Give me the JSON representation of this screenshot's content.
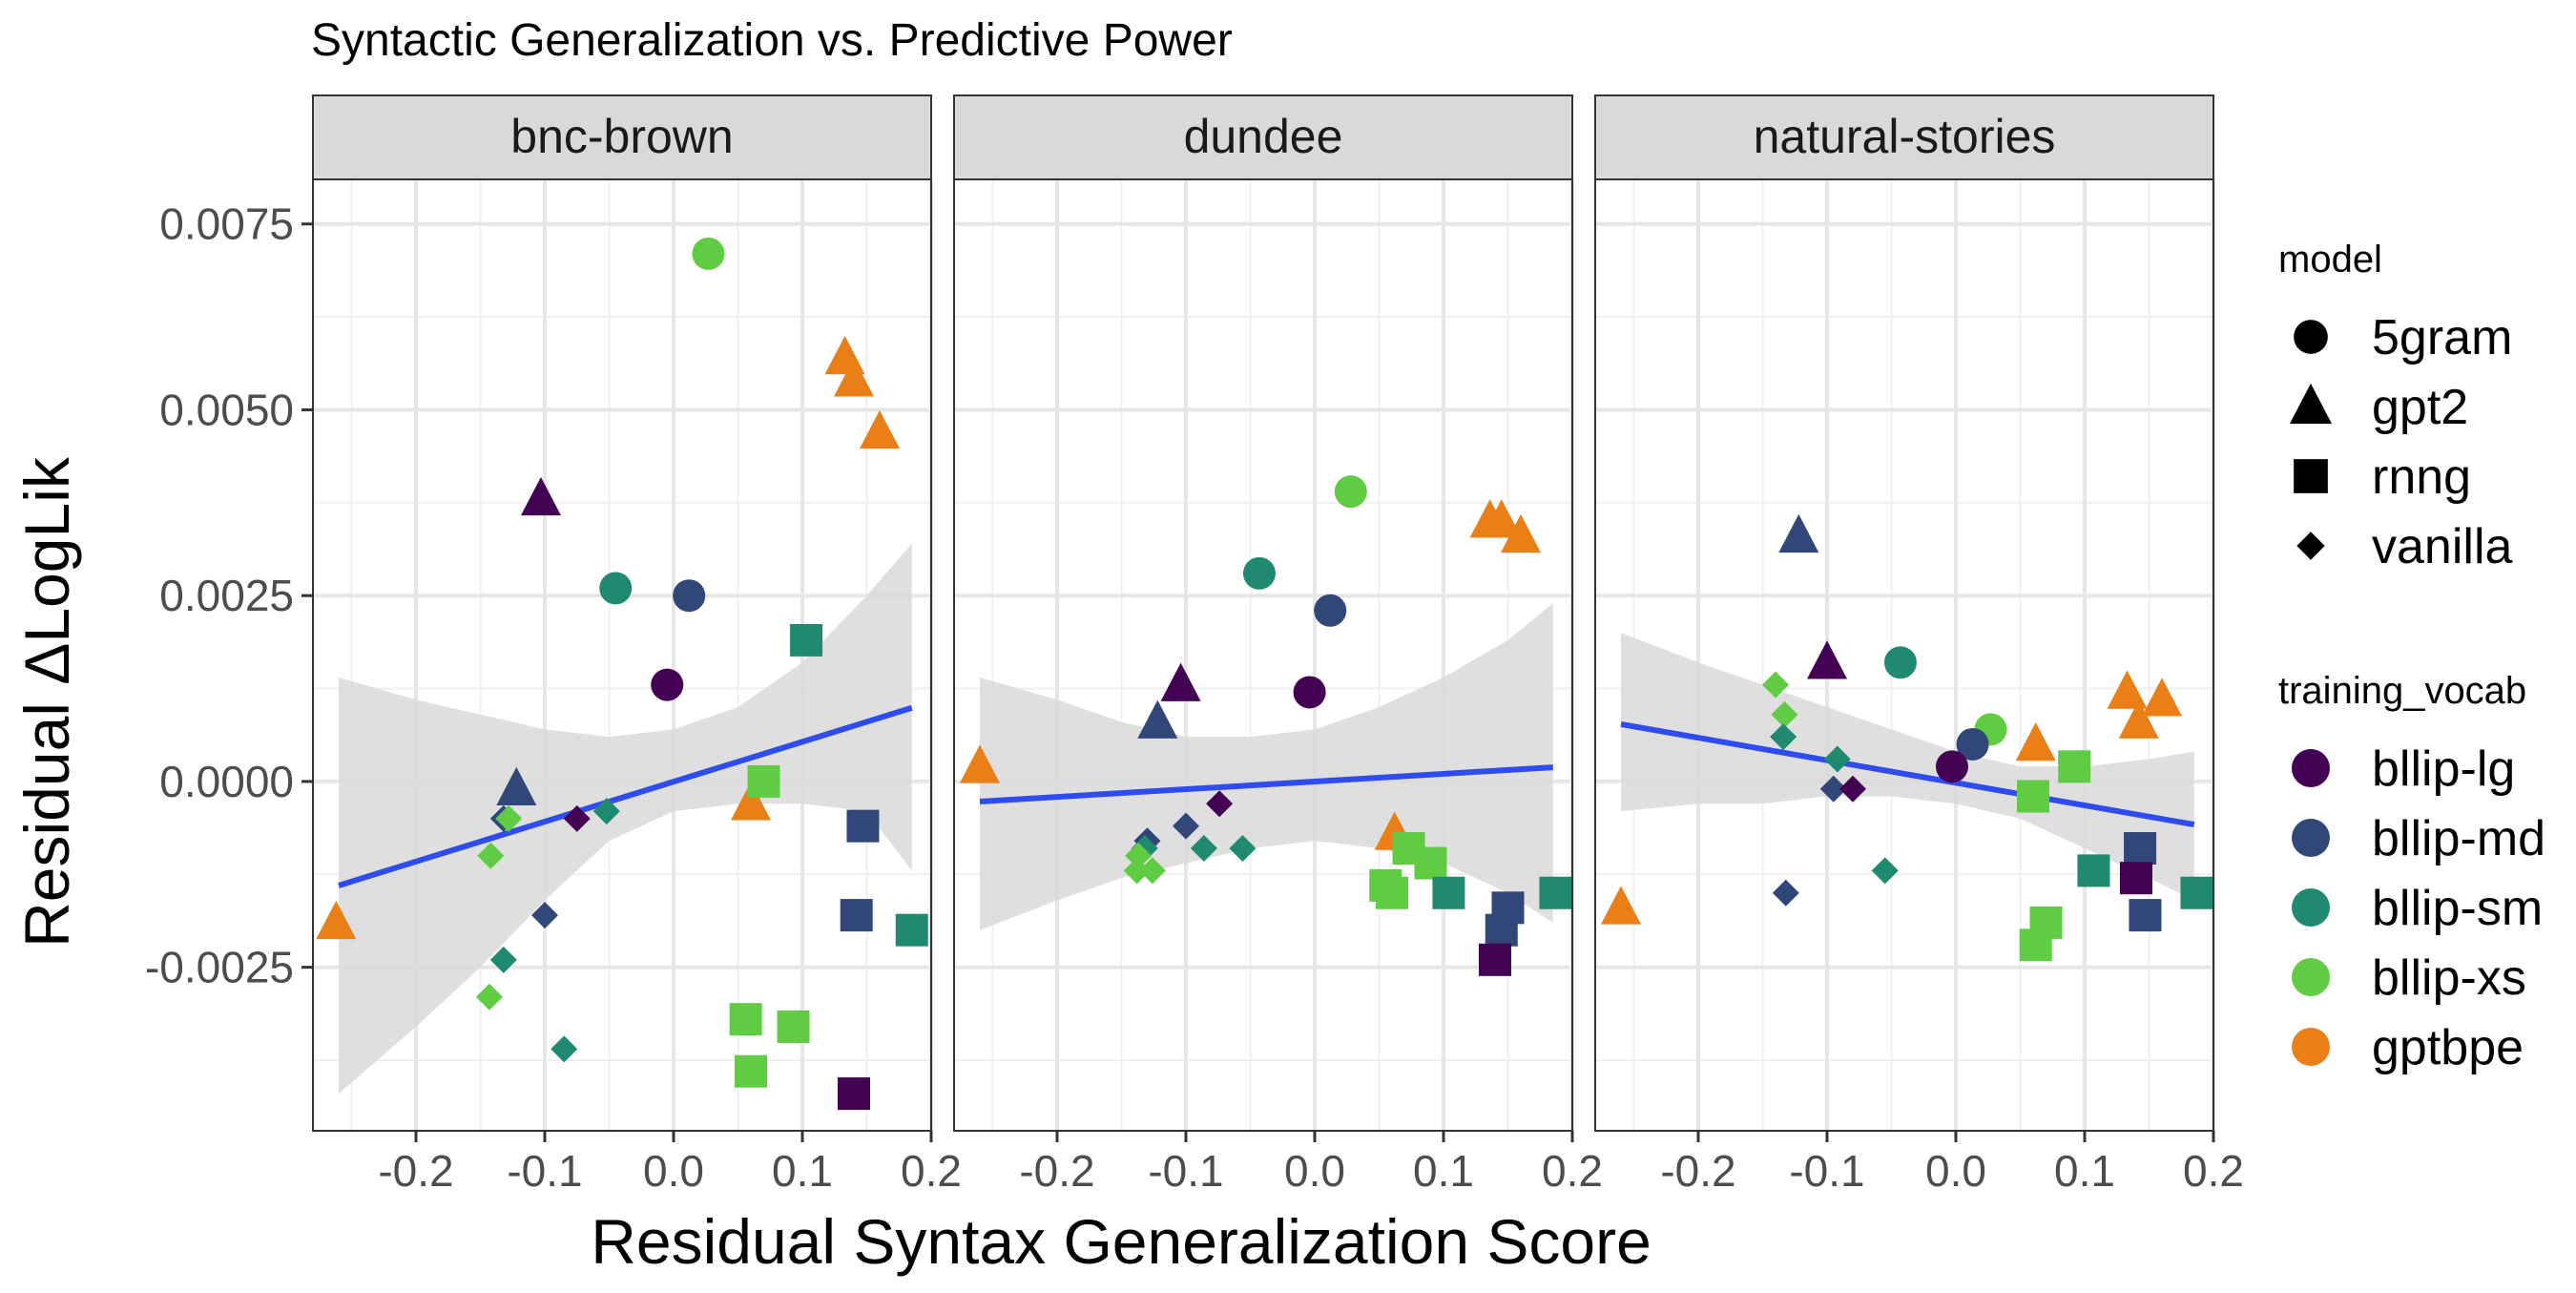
{
  "chart_data": {
    "type": "scatter",
    "title": "Syntactic Generalization vs. Predictive Power",
    "xlabel": "Residual Syntax Generalization Score",
    "ylabel": "Residual ΔLogLik",
    "xlim": [
      -0.28,
      0.2
    ],
    "ylim": [
      -0.0047,
      0.0081
    ],
    "x_ticks": [
      -0.2,
      -0.1,
      0.0,
      0.1,
      0.2
    ],
    "x_tick_labels": [
      "-0.2",
      "-0.1",
      "0.0",
      "0.1",
      "0.2"
    ],
    "y_ticks": [
      -0.0025,
      0.0,
      0.0025,
      0.005,
      0.0075
    ],
    "y_tick_labels": [
      "-0.0025",
      "0.0000",
      "0.0025",
      "0.0050",
      "0.0075"
    ],
    "grid": true,
    "legend": {
      "placement": "right",
      "model": {
        "title": "model",
        "entries": [
          {
            "label": "5gram",
            "shape": "circle"
          },
          {
            "label": "gpt2",
            "shape": "triangle"
          },
          {
            "label": "rnng",
            "shape": "square"
          },
          {
            "label": "vanilla",
            "shape": "diamond"
          }
        ]
      },
      "training_vocab": {
        "title": "training_vocab",
        "entries": [
          {
            "label": "bllip-lg",
            "color": "#440154"
          },
          {
            "label": "bllip-md",
            "color": "#31477a"
          },
          {
            "label": "bllip-sm",
            "color": "#1f8a70"
          },
          {
            "label": "bllip-xs",
            "color": "#5fcc44"
          },
          {
            "label": "gptbpe",
            "color": "#ea7f17"
          }
        ]
      }
    },
    "colors": {
      "bllip-lg": "#440154",
      "bllip-md": "#31477a",
      "bllip-sm": "#1f8a70",
      "bllip-xs": "#5fcc44",
      "gptbpe": "#ea7f17",
      "regression_line": "#2f4cf0",
      "confidence_band": "#d9d9d9",
      "strip_fill": "#d9d9d9"
    },
    "panels": [
      {
        "name": "bnc-brown",
        "regression": {
          "x": [
            -0.26,
            0.185
          ],
          "y": [
            -0.0014,
            0.00099
          ]
        },
        "band": {
          "x": [
            -0.26,
            -0.2,
            -0.15,
            -0.1,
            -0.05,
            0.0,
            0.05,
            0.1,
            0.15,
            0.185
          ],
          "upper": [
            0.0014,
            0.0011,
            0.0009,
            0.0007,
            0.0006,
            0.0007,
            0.001,
            0.0016,
            0.0025,
            0.0032
          ],
          "lower": [
            -0.0042,
            -0.0033,
            -0.0025,
            -0.0016,
            -0.0008,
            -0.0004,
            -0.0003,
            -0.0003,
            -0.0004,
            -0.0012
          ]
        },
        "points": [
          {
            "x": -0.262,
            "y": -0.0019,
            "model": "gpt2",
            "vocab": "gptbpe"
          },
          {
            "x": 0.06,
            "y": -0.0003,
            "model": "gpt2",
            "vocab": "gptbpe"
          },
          {
            "x": 0.133,
            "y": 0.0057,
            "model": "gpt2",
            "vocab": "gptbpe"
          },
          {
            "x": 0.14,
            "y": 0.0054,
            "model": "gpt2",
            "vocab": "gptbpe"
          },
          {
            "x": 0.16,
            "y": 0.0047,
            "model": "gpt2",
            "vocab": "gptbpe"
          },
          {
            "x": -0.103,
            "y": 0.0038,
            "model": "gpt2",
            "vocab": "bllip-lg"
          },
          {
            "x": -0.122,
            "y": -0.0001,
            "model": "gpt2",
            "vocab": "bllip-md"
          },
          {
            "x": 0.027,
            "y": 0.0071,
            "model": "5gram",
            "vocab": "bllip-xs"
          },
          {
            "x": -0.045,
            "y": 0.0026,
            "model": "5gram",
            "vocab": "bllip-sm"
          },
          {
            "x": 0.012,
            "y": 0.0025,
            "model": "5gram",
            "vocab": "bllip-md"
          },
          {
            "x": -0.005,
            "y": 0.0013,
            "model": "5gram",
            "vocab": "bllip-lg"
          },
          {
            "x": 0.103,
            "y": 0.0019,
            "model": "rnng",
            "vocab": "bllip-sm"
          },
          {
            "x": 0.07,
            "y": 0.0,
            "model": "rnng",
            "vocab": "bllip-xs"
          },
          {
            "x": 0.147,
            "y": -0.0006,
            "model": "rnng",
            "vocab": "bllip-md"
          },
          {
            "x": 0.142,
            "y": -0.0018,
            "model": "rnng",
            "vocab": "bllip-md"
          },
          {
            "x": 0.185,
            "y": -0.002,
            "model": "rnng",
            "vocab": "bllip-sm"
          },
          {
            "x": 0.056,
            "y": -0.0032,
            "model": "rnng",
            "vocab": "bllip-xs"
          },
          {
            "x": 0.093,
            "y": -0.0033,
            "model": "rnng",
            "vocab": "bllip-xs"
          },
          {
            "x": 0.06,
            "y": -0.0039,
            "model": "rnng",
            "vocab": "bllip-xs"
          },
          {
            "x": 0.14,
            "y": -0.0042,
            "model": "rnng",
            "vocab": "bllip-lg"
          },
          {
            "x": -0.132,
            "y": -0.0005,
            "model": "vanilla",
            "vocab": "bllip-md"
          },
          {
            "x": -0.128,
            "y": -0.0005,
            "model": "vanilla",
            "vocab": "bllip-xs"
          },
          {
            "x": -0.075,
            "y": -0.0005,
            "model": "vanilla",
            "vocab": "bllip-lg"
          },
          {
            "x": -0.052,
            "y": -0.0004,
            "model": "vanilla",
            "vocab": "bllip-sm"
          },
          {
            "x": -0.142,
            "y": -0.001,
            "model": "vanilla",
            "vocab": "bllip-xs"
          },
          {
            "x": -0.1,
            "y": -0.0018,
            "model": "vanilla",
            "vocab": "bllip-md"
          },
          {
            "x": -0.132,
            "y": -0.0024,
            "model": "vanilla",
            "vocab": "bllip-sm"
          },
          {
            "x": -0.143,
            "y": -0.0029,
            "model": "vanilla",
            "vocab": "bllip-xs"
          },
          {
            "x": -0.085,
            "y": -0.0036,
            "model": "vanilla",
            "vocab": "bllip-sm"
          }
        ]
      },
      {
        "name": "dundee",
        "regression": {
          "x": [
            -0.26,
            0.185
          ],
          "y": [
            -0.00027,
            0.00019
          ]
        },
        "band": {
          "x": [
            -0.26,
            -0.2,
            -0.15,
            -0.1,
            -0.05,
            0.0,
            0.05,
            0.1,
            0.15,
            0.185
          ],
          "upper": [
            0.0014,
            0.0011,
            0.0008,
            0.0006,
            0.0006,
            0.0007,
            0.001,
            0.0014,
            0.0019,
            0.0024
          ],
          "lower": [
            -0.002,
            -0.0016,
            -0.0013,
            -0.0011,
            -0.0009,
            -0.0008,
            -0.0009,
            -0.0011,
            -0.0015,
            -0.0019
          ]
        },
        "points": [
          {
            "x": -0.26,
            "y": 0.0002,
            "model": "gpt2",
            "vocab": "gptbpe"
          },
          {
            "x": 0.062,
            "y": -0.0007,
            "model": "gpt2",
            "vocab": "gptbpe"
          },
          {
            "x": 0.136,
            "y": 0.0035,
            "model": "gpt2",
            "vocab": "gptbpe"
          },
          {
            "x": 0.145,
            "y": 0.0035,
            "model": "gpt2",
            "vocab": "gptbpe"
          },
          {
            "x": 0.16,
            "y": 0.0033,
            "model": "gpt2",
            "vocab": "gptbpe"
          },
          {
            "x": -0.104,
            "y": 0.0013,
            "model": "gpt2",
            "vocab": "bllip-lg"
          },
          {
            "x": -0.122,
            "y": 0.0008,
            "model": "gpt2",
            "vocab": "bllip-md"
          },
          {
            "x": 0.028,
            "y": 0.0039,
            "model": "5gram",
            "vocab": "bllip-xs"
          },
          {
            "x": -0.043,
            "y": 0.0028,
            "model": "5gram",
            "vocab": "bllip-sm"
          },
          {
            "x": 0.012,
            "y": 0.0023,
            "model": "5gram",
            "vocab": "bllip-md"
          },
          {
            "x": -0.004,
            "y": 0.0012,
            "model": "5gram",
            "vocab": "bllip-lg"
          },
          {
            "x": 0.073,
            "y": -0.0009,
            "model": "rnng",
            "vocab": "bllip-xs"
          },
          {
            "x": 0.09,
            "y": -0.0011,
            "model": "rnng",
            "vocab": "bllip-xs"
          },
          {
            "x": 0.055,
            "y": -0.0014,
            "model": "rnng",
            "vocab": "bllip-xs"
          },
          {
            "x": 0.06,
            "y": -0.0015,
            "model": "rnng",
            "vocab": "bllip-xs"
          },
          {
            "x": 0.104,
            "y": -0.0015,
            "model": "rnng",
            "vocab": "bllip-sm"
          },
          {
            "x": 0.187,
            "y": -0.0015,
            "model": "rnng",
            "vocab": "bllip-sm"
          },
          {
            "x": 0.15,
            "y": -0.0017,
            "model": "rnng",
            "vocab": "bllip-md"
          },
          {
            "x": 0.145,
            "y": -0.002,
            "model": "rnng",
            "vocab": "bllip-md"
          },
          {
            "x": 0.14,
            "y": -0.0024,
            "model": "rnng",
            "vocab": "bllip-lg"
          },
          {
            "x": -0.074,
            "y": -0.0003,
            "model": "vanilla",
            "vocab": "bllip-lg"
          },
          {
            "x": -0.13,
            "y": -0.0008,
            "model": "vanilla",
            "vocab": "bllip-md"
          },
          {
            "x": -0.1,
            "y": -0.0006,
            "model": "vanilla",
            "vocab": "bllip-md"
          },
          {
            "x": -0.086,
            "y": -0.0009,
            "model": "vanilla",
            "vocab": "bllip-sm"
          },
          {
            "x": -0.056,
            "y": -0.0009,
            "model": "vanilla",
            "vocab": "bllip-sm"
          },
          {
            "x": -0.132,
            "y": -0.0009,
            "model": "vanilla",
            "vocab": "bllip-sm"
          },
          {
            "x": -0.137,
            "y": -0.001,
            "model": "vanilla",
            "vocab": "bllip-xs"
          },
          {
            "x": -0.138,
            "y": -0.0012,
            "model": "vanilla",
            "vocab": "bllip-xs"
          },
          {
            "x": -0.126,
            "y": -0.0012,
            "model": "vanilla",
            "vocab": "bllip-xs"
          }
        ]
      },
      {
        "name": "natural-stories",
        "regression": {
          "x": [
            -0.26,
            0.185
          ],
          "y": [
            0.00077,
            -0.00058
          ]
        },
        "band": {
          "x": [
            -0.26,
            -0.2,
            -0.15,
            -0.1,
            -0.05,
            0.0,
            0.05,
            0.1,
            0.15,
            0.185
          ],
          "upper": [
            0.002,
            0.0016,
            0.0013,
            0.001,
            0.0007,
            0.0004,
            0.0002,
            0.0002,
            0.0003,
            0.0004
          ],
          "lower": [
            -0.0004,
            -0.0003,
            -0.0003,
            -0.0002,
            -0.0002,
            -0.0003,
            -0.0005,
            -0.0009,
            -0.0013,
            -0.0016
          ]
        },
        "points": [
          {
            "x": -0.26,
            "y": -0.0017,
            "model": "gpt2",
            "vocab": "gptbpe"
          },
          {
            "x": 0.062,
            "y": 0.0005,
            "model": "gpt2",
            "vocab": "gptbpe"
          },
          {
            "x": 0.133,
            "y": 0.0012,
            "model": "gpt2",
            "vocab": "gptbpe"
          },
          {
            "x": 0.16,
            "y": 0.0011,
            "model": "gpt2",
            "vocab": "gptbpe"
          },
          {
            "x": 0.142,
            "y": 0.0008,
            "model": "gpt2",
            "vocab": "gptbpe"
          },
          {
            "x": -0.122,
            "y": 0.0033,
            "model": "gpt2",
            "vocab": "bllip-md"
          },
          {
            "x": -0.1,
            "y": 0.0016,
            "model": "gpt2",
            "vocab": "bllip-lg"
          },
          {
            "x": -0.043,
            "y": 0.0016,
            "model": "5gram",
            "vocab": "bllip-sm"
          },
          {
            "x": 0.027,
            "y": 0.0007,
            "model": "5gram",
            "vocab": "bllip-xs"
          },
          {
            "x": 0.013,
            "y": 0.0005,
            "model": "5gram",
            "vocab": "bllip-md"
          },
          {
            "x": -0.003,
            "y": 0.0002,
            "model": "5gram",
            "vocab": "bllip-lg"
          },
          {
            "x": 0.092,
            "y": 0.0002,
            "model": "rnng",
            "vocab": "bllip-xs"
          },
          {
            "x": 0.06,
            "y": -0.0002,
            "model": "rnng",
            "vocab": "bllip-xs"
          },
          {
            "x": 0.143,
            "y": -0.0009,
            "model": "rnng",
            "vocab": "bllip-md"
          },
          {
            "x": 0.107,
            "y": -0.0012,
            "model": "rnng",
            "vocab": "bllip-sm"
          },
          {
            "x": 0.14,
            "y": -0.0013,
            "model": "rnng",
            "vocab": "bllip-lg"
          },
          {
            "x": 0.187,
            "y": -0.0015,
            "model": "rnng",
            "vocab": "bllip-sm"
          },
          {
            "x": 0.147,
            "y": -0.0018,
            "model": "rnng",
            "vocab": "bllip-md"
          },
          {
            "x": 0.07,
            "y": -0.0019,
            "model": "rnng",
            "vocab": "bllip-xs"
          },
          {
            "x": 0.062,
            "y": -0.0022,
            "model": "rnng",
            "vocab": "bllip-xs"
          },
          {
            "x": -0.14,
            "y": 0.0013,
            "model": "vanilla",
            "vocab": "bllip-xs"
          },
          {
            "x": -0.133,
            "y": 0.0009,
            "model": "vanilla",
            "vocab": "bllip-xs"
          },
          {
            "x": -0.134,
            "y": 0.0006,
            "model": "vanilla",
            "vocab": "bllip-sm"
          },
          {
            "x": -0.092,
            "y": 0.0003,
            "model": "vanilla",
            "vocab": "bllip-sm"
          },
          {
            "x": -0.095,
            "y": -0.0001,
            "model": "vanilla",
            "vocab": "bllip-md"
          },
          {
            "x": -0.08,
            "y": -0.0001,
            "model": "vanilla",
            "vocab": "bllip-lg"
          },
          {
            "x": -0.055,
            "y": -0.0012,
            "model": "vanilla",
            "vocab": "bllip-sm"
          },
          {
            "x": -0.132,
            "y": -0.0015,
            "model": "vanilla",
            "vocab": "bllip-md"
          }
        ]
      }
    ]
  }
}
